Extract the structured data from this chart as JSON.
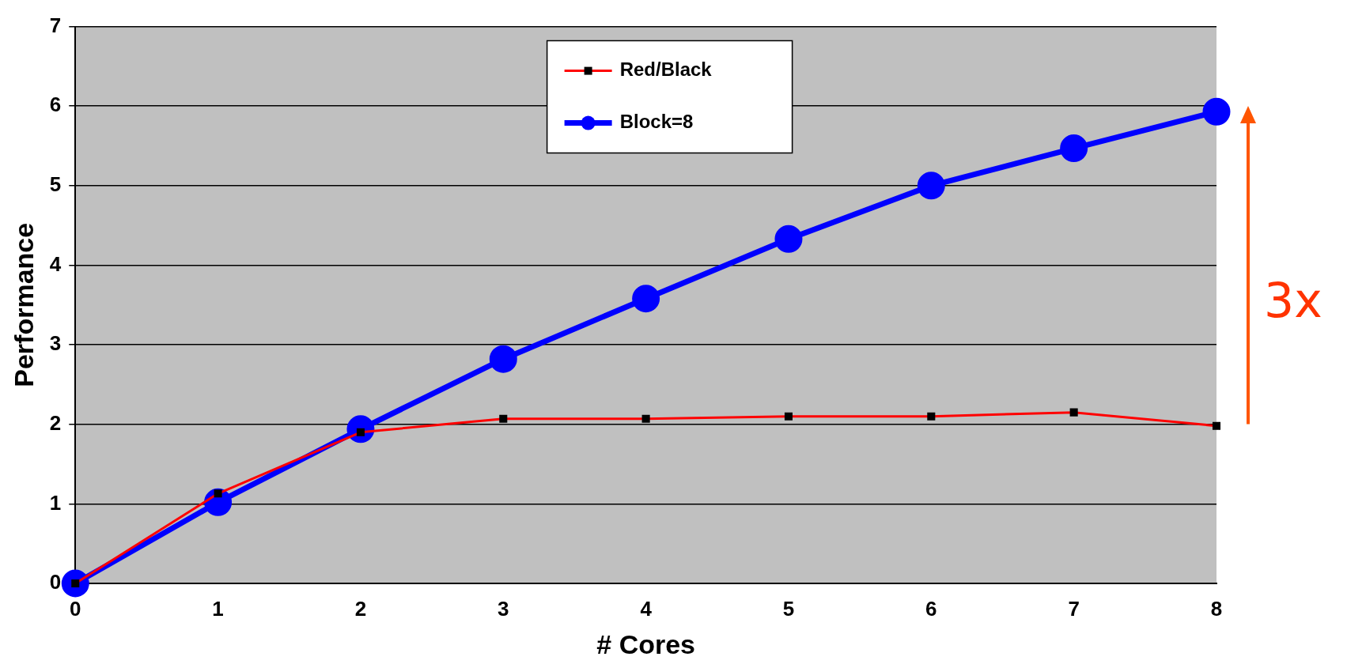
{
  "chart_data": {
    "type": "line",
    "xlabel": "# Cores",
    "ylabel": "Performance",
    "x": [
      0,
      1,
      2,
      3,
      4,
      5,
      6,
      7,
      8
    ],
    "xlim": [
      0,
      8
    ],
    "xticks": [
      0,
      1,
      2,
      3,
      4,
      5,
      6,
      7,
      8
    ],
    "ylim": [
      0,
      7
    ],
    "yticks": [
      0,
      1,
      2,
      3,
      4,
      5,
      6,
      7
    ],
    "grid": "y",
    "legend": "top",
    "series": [
      {
        "name": "Red/Black",
        "color": "#ff0000",
        "marker": "square",
        "values": [
          0,
          1.13,
          1.9,
          2.07,
          2.07,
          2.1,
          2.1,
          2.15,
          1.98
        ]
      },
      {
        "name": "Block=8",
        "color": "#0000ff",
        "marker": "circle",
        "values": [
          0,
          1.02,
          1.94,
          2.82,
          3.58,
          4.33,
          5.0,
          5.47,
          5.93
        ]
      }
    ],
    "annotations": [
      "3x"
    ]
  }
}
